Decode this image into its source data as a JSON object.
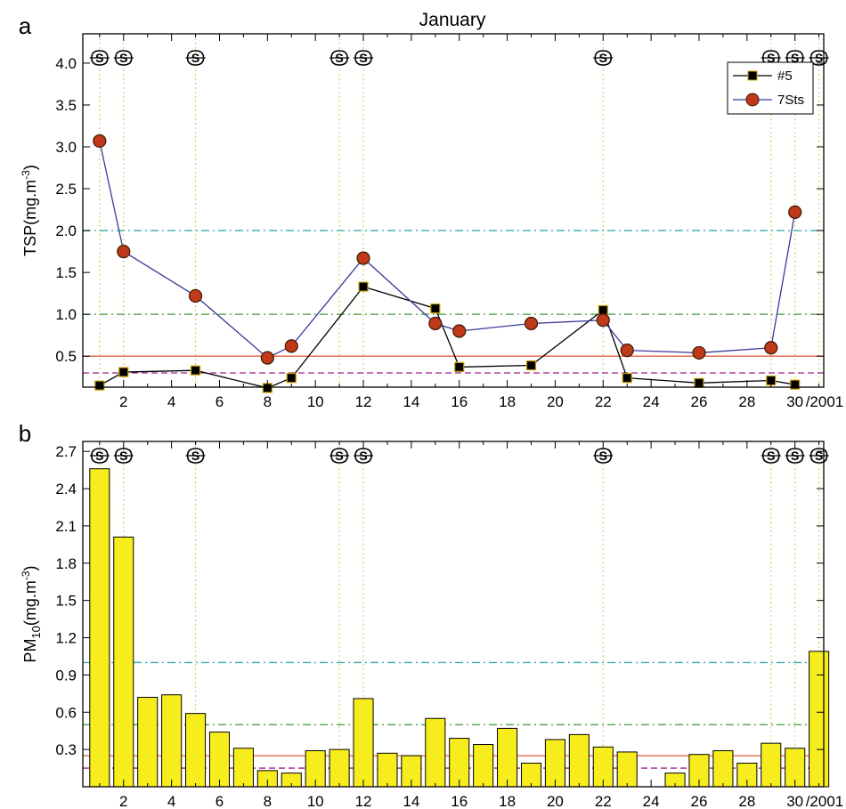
{
  "figure_title": "January",
  "chart_data": [
    {
      "panel_label": "a",
      "type": "line",
      "ylabel": "TSP(mg.m",
      "ylabel_sup": "-3",
      "ylabel_close": ")",
      "xlim": [
        0.3,
        31.2
      ],
      "ylim": [
        0.13,
        4.35
      ],
      "xticks": [
        2,
        4,
        6,
        8,
        10,
        12,
        14,
        16,
        18,
        20,
        22,
        24,
        26,
        28,
        30
      ],
      "xtick_labels": [
        "2",
        "4",
        "6",
        "8",
        "10",
        "12",
        "14",
        "16",
        "18",
        "20",
        "22",
        "24",
        "26",
        "28",
        "30"
      ],
      "year_label": "/2001",
      "yticks": [
        0.5,
        1.0,
        1.5,
        2.0,
        2.5,
        3.0,
        3.5,
        4.0
      ],
      "ytick_labels": [
        "0.5",
        "1.0",
        "1.5",
        "2.0",
        "2.5",
        "3.0",
        "3.5",
        "4.0"
      ],
      "legend_position": "top-right",
      "series": [
        {
          "name": "#5",
          "marker": "square",
          "color": "#000000",
          "marker_fill": "#000000",
          "marker_edge": "#c8a000",
          "x": [
            1,
            2,
            5,
            8,
            9,
            12,
            15,
            16,
            19,
            22,
            23,
            26,
            29,
            30
          ],
          "values": [
            0.15,
            0.31,
            0.33,
            0.12,
            0.24,
            1.33,
            1.07,
            0.37,
            0.39,
            1.05,
            0.24,
            0.18,
            0.21,
            0.16
          ]
        },
        {
          "name": "7Sts",
          "marker": "circle",
          "color": "#3a3a9a",
          "marker_fill": "#c0391b",
          "marker_edge": "#3a1a00",
          "x": [
            1,
            2,
            5,
            8,
            9,
            12,
            15,
            16,
            19,
            22,
            23,
            26,
            29,
            30
          ],
          "values": [
            3.07,
            1.75,
            1.22,
            0.48,
            0.62,
            1.67,
            0.89,
            0.8,
            0.89,
            0.93,
            0.57,
            0.54,
            0.6,
            2.22
          ]
        }
      ],
      "reference_lines": [
        {
          "value": 2.0,
          "style": "dash-dot",
          "color": "#44a8a8"
        },
        {
          "value": 1.0,
          "style": "dash-dot",
          "color": "#3a9a3a"
        },
        {
          "value": 0.5,
          "style": "solid",
          "color": "#e0603a"
        },
        {
          "value": 0.3,
          "style": "dashed",
          "color": "#a0208a"
        }
      ],
      "event_days": [
        1,
        2,
        5,
        11,
        12,
        22,
        29,
        30,
        31
      ],
      "event_symbol": "dust-storm-icon"
    },
    {
      "panel_label": "b",
      "type": "bar",
      "ylabel": "PM",
      "ylabel_sub": "10",
      "ylabel_rest": "(mg.m",
      "ylabel_sup": "-3",
      "ylabel_close": ")",
      "xlim": [
        0.3,
        31.2
      ],
      "ylim": [
        0.0,
        2.78
      ],
      "xticks": [
        2,
        4,
        6,
        8,
        10,
        12,
        14,
        16,
        18,
        20,
        22,
        24,
        26,
        28,
        30
      ],
      "xtick_labels": [
        "2",
        "4",
        "6",
        "8",
        "10",
        "12",
        "14",
        "16",
        "18",
        "20",
        "22",
        "24",
        "26",
        "28",
        "30"
      ],
      "year_label": "/2001",
      "yticks": [
        0.3,
        0.6,
        0.9,
        1.2,
        1.5,
        1.8,
        2.1,
        2.4,
        2.7
      ],
      "ytick_labels": [
        "0.3",
        "0.6",
        "0.9",
        "1.2",
        "1.5",
        "1.8",
        "2.1",
        "2.4",
        "2.7"
      ],
      "bar_color": "#f7ed1c",
      "categories": [
        1,
        2,
        3,
        4,
        5,
        6,
        7,
        8,
        9,
        10,
        11,
        12,
        13,
        14,
        15,
        16,
        17,
        18,
        19,
        20,
        21,
        22,
        23,
        24,
        25,
        26,
        27,
        28,
        29,
        30,
        31
      ],
      "values": [
        2.56,
        2.01,
        0.72,
        0.74,
        0.59,
        0.44,
        0.31,
        0.13,
        0.11,
        0.29,
        0.3,
        0.71,
        0.27,
        0.25,
        0.55,
        0.39,
        0.34,
        0.47,
        0.19,
        0.38,
        0.42,
        0.32,
        0.28,
        0.0,
        0.11,
        0.26,
        0.29,
        0.19,
        0.35,
        0.31,
        1.09
      ],
      "reference_lines": [
        {
          "value": 1.0,
          "style": "dash-dot",
          "color": "#44a8a8"
        },
        {
          "value": 0.5,
          "style": "dash-dot",
          "color": "#3a9a3a"
        },
        {
          "value": 0.25,
          "style": "solid",
          "color": "#e0603a"
        },
        {
          "value": 0.15,
          "style": "dashed",
          "color": "#a0208a"
        }
      ],
      "event_days": [
        1,
        2,
        5,
        11,
        12,
        22,
        29,
        30,
        31
      ],
      "event_symbol": "dust-storm-icon"
    }
  ]
}
